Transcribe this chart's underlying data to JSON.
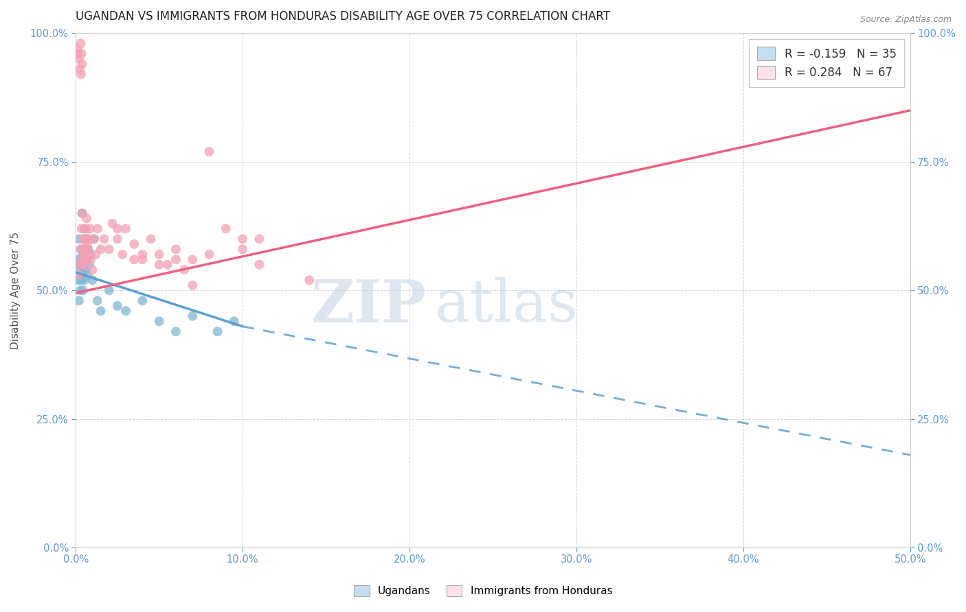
{
  "title": "UGANDAN VS IMMIGRANTS FROM HONDURAS DISABILITY AGE OVER 75 CORRELATION CHART",
  "source": "Source: ZipAtlas.com",
  "ylabel": "Disability Age Over 75",
  "legend_label1": "Ugandans",
  "legend_label2": "Immigrants from Honduras",
  "r1": -0.159,
  "n1": 35,
  "r2": 0.284,
  "n2": 67,
  "color1": "#7eb8d4",
  "color2": "#f4a0b5",
  "color1_fill": "#c5dff0",
  "color2_fill": "#fce0ec",
  "trend1_color": "#5b9fd4",
  "trend2_color": "#f06080",
  "background_color": "#ffffff",
  "grid_color": "#cccccc",
  "watermark_zip": "ZIP",
  "watermark_atlas": "atlas",
  "xmin": 0.0,
  "xmax": 50.0,
  "ymin": 0.0,
  "ymax": 100.0,
  "xticks": [
    0,
    10,
    20,
    30,
    40,
    50
  ],
  "yticks": [
    0,
    25,
    50,
    75,
    100
  ],
  "ugandan_x": [
    0.15,
    0.18,
    0.2,
    0.22,
    0.25,
    0.28,
    0.3,
    0.32,
    0.35,
    0.38,
    0.4,
    0.42,
    0.45,
    0.48,
    0.5,
    0.55,
    0.6,
    0.65,
    0.7,
    0.75,
    0.8,
    0.9,
    1.0,
    1.1,
    1.3,
    1.5,
    2.0,
    2.5,
    3.0,
    4.0,
    5.0,
    6.0,
    7.0,
    8.5,
    9.5
  ],
  "ugandan_y": [
    52,
    56,
    48,
    60,
    55,
    50,
    54,
    58,
    52,
    65,
    53,
    57,
    50,
    55,
    52,
    54,
    60,
    56,
    53,
    58,
    55,
    57,
    52,
    60,
    48,
    46,
    50,
    47,
    46,
    48,
    44,
    42,
    45,
    42,
    44
  ],
  "honduras_x": [
    0.1,
    0.15,
    0.2,
    0.25,
    0.3,
    0.32,
    0.35,
    0.38,
    0.4,
    0.42,
    0.45,
    0.48,
    0.5,
    0.52,
    0.55,
    0.58,
    0.6,
    0.65,
    0.7,
    0.75,
    0.8,
    0.85,
    0.9,
    1.0,
    1.1,
    1.2,
    1.3,
    1.5,
    1.7,
    2.0,
    2.2,
    2.5,
    2.8,
    3.0,
    3.5,
    4.0,
    4.5,
    5.0,
    5.5,
    6.0,
    6.5,
    7.0,
    8.0,
    9.0,
    10.0,
    11.0,
    0.2,
    0.25,
    0.3,
    0.35,
    0.4,
    0.45,
    0.5,
    0.55,
    0.6,
    0.65,
    0.7,
    2.5,
    3.5,
    5.0,
    7.0,
    4.0,
    10.0,
    14.0,
    6.0,
    11.0,
    8.0
  ],
  "honduras_y": [
    97,
    96,
    95,
    93,
    98,
    92,
    96,
    94,
    65,
    55,
    58,
    57,
    60,
    62,
    56,
    60,
    58,
    64,
    59,
    60,
    57,
    62,
    56,
    54,
    60,
    57,
    62,
    58,
    60,
    58,
    63,
    60,
    57,
    62,
    59,
    56,
    60,
    57,
    55,
    58,
    54,
    56,
    57,
    62,
    58,
    60,
    53,
    55,
    58,
    62,
    56,
    60,
    55,
    57,
    62,
    58,
    60,
    62,
    56,
    55,
    51,
    57,
    60,
    52,
    56,
    55,
    77
  ],
  "trend1_x0": 0.0,
  "trend1_y0": 53.5,
  "trend1_x1": 10.0,
  "trend1_y1": 43.0,
  "trend1_xdash_end": 50.0,
  "trend1_ydash_end": 18.0,
  "trend2_x0": 0.0,
  "trend2_y0": 49.5,
  "trend2_x1": 50.0,
  "trend2_y1": 85.0
}
